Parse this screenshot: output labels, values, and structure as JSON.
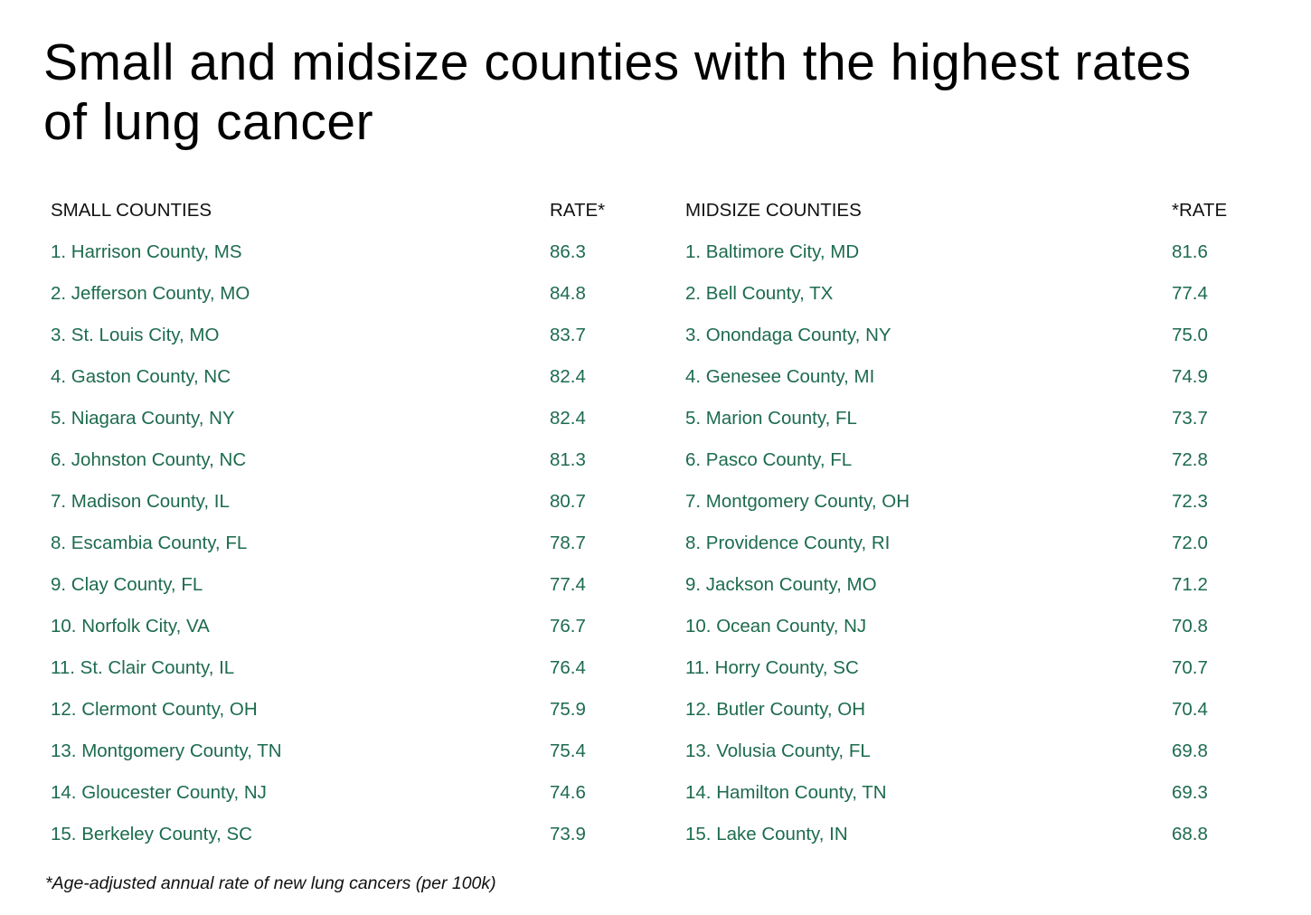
{
  "title": "Small and midsize counties with the highest rates of lung cancer",
  "footnote": "*Age-adjusted annual rate of new lung cancers (per 100k)",
  "colors": {
    "text": "#000000",
    "row_text": "#1d6b4e",
    "background": "#ffffff"
  },
  "chart_data": {
    "type": "table",
    "title": "Small and midsize counties with the highest rates of lung cancer",
    "tables": [
      {
        "columns": [
          "SMALL COUNTIES",
          "RATE*"
        ],
        "rows": [
          [
            "1. Harrison County, MS",
            "86.3"
          ],
          [
            "2. Jefferson County, MO",
            "84.8"
          ],
          [
            "3. St. Louis City, MO",
            "83.7"
          ],
          [
            "4. Gaston County, NC",
            "82.4"
          ],
          [
            "5. Niagara County, NY",
            "82.4"
          ],
          [
            "6. Johnston County, NC",
            "81.3"
          ],
          [
            "7. Madison County, IL",
            "80.7"
          ],
          [
            "8. Escambia County, FL",
            "78.7"
          ],
          [
            "9. Clay County, FL",
            "77.4"
          ],
          [
            "10. Norfolk City, VA",
            "76.7"
          ],
          [
            "11. St. Clair County, IL",
            "76.4"
          ],
          [
            "12. Clermont County, OH",
            "75.9"
          ],
          [
            "13. Montgomery County, TN",
            "75.4"
          ],
          [
            "14. Gloucester County, NJ",
            "74.6"
          ],
          [
            "15. Berkeley County, SC",
            "73.9"
          ]
        ]
      },
      {
        "columns": [
          "MIDSIZE COUNTIES",
          "*RATE"
        ],
        "rows": [
          [
            "1. Baltimore City, MD",
            "81.6"
          ],
          [
            "2. Bell County, TX",
            "77.4"
          ],
          [
            "3. Onondaga County, NY",
            "75.0"
          ],
          [
            "4. Genesee County, MI",
            "74.9"
          ],
          [
            "5. Marion County, FL",
            "73.7"
          ],
          [
            "6. Pasco County, FL",
            "72.8"
          ],
          [
            "7. Montgomery County, OH",
            "72.3"
          ],
          [
            "8. Providence County, RI",
            "72.0"
          ],
          [
            "9. Jackson County, MO",
            "71.2"
          ],
          [
            "10. Ocean County, NJ",
            "70.8"
          ],
          [
            "11. Horry County, SC",
            "70.7"
          ],
          [
            "12. Butler County, OH",
            "70.4"
          ],
          [
            "13. Volusia County, FL",
            "69.8"
          ],
          [
            "14. Hamilton County, TN",
            "69.3"
          ],
          [
            "15. Lake County, IN",
            "68.8"
          ]
        ]
      }
    ]
  }
}
